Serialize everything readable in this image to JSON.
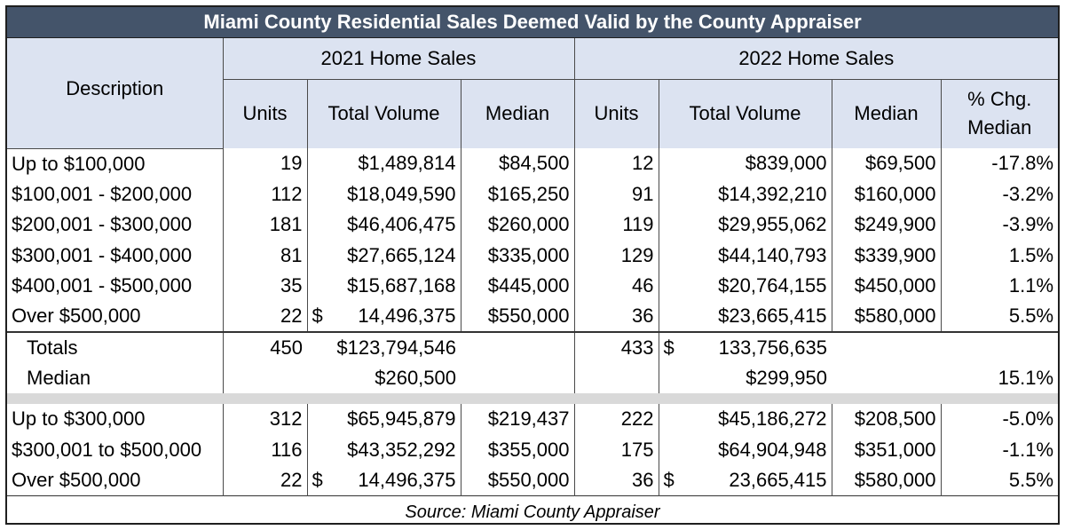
{
  "title": "Miami County Residential Sales Deemed Valid by the County Appraiser",
  "headers": {
    "description": "Description",
    "group_2021": "2021 Home Sales",
    "group_2022": "2022 Home Sales",
    "units": "Units",
    "total_volume": "Total Volume",
    "median": "Median",
    "pct_chg_line1": "% Chg.",
    "pct_chg_line2": "Median"
  },
  "rows_section1": [
    {
      "desc": "Up to $100,000",
      "u21": "19",
      "tv21": "$1,489,814",
      "m21": "$84,500",
      "u22": "12",
      "tv22": "$839,000",
      "m22": "$69,500",
      "pct": "-17.8%"
    },
    {
      "desc": "$100,001 - $200,000",
      "u21": "112",
      "tv21": "$18,049,590",
      "m21": "$165,250",
      "u22": "91",
      "tv22": "$14,392,210",
      "m22": "$160,000",
      "pct": "-3.2%"
    },
    {
      "desc": "$200,001 - $300,000",
      "u21": "181",
      "tv21": "$46,406,475",
      "m21": "$260,000",
      "u22": "119",
      "tv22": "$29,955,062",
      "m22": "$249,900",
      "pct": "-3.9%"
    },
    {
      "desc": "$300,001 - $400,000",
      "u21": "81",
      "tv21": "$27,665,124",
      "m21": "$335,000",
      "u22": "129",
      "tv22": "$44,140,793",
      "m22": "$339,900",
      "pct": "1.5%"
    },
    {
      "desc": "$400,001 - $500,000",
      "u21": "35",
      "tv21": "$15,687,168",
      "m21": "$445,000",
      "u22": "46",
      "tv22": "$20,764,155",
      "m22": "$450,000",
      "pct": "1.1%"
    },
    {
      "desc": "Over $500,000",
      "u21": "22",
      "tv21_sym": "$",
      "tv21_num": "14,496,375",
      "m21": "$550,000",
      "u22": "36",
      "tv22": "$23,665,415",
      "m22": "$580,000",
      "pct": "5.5%"
    }
  ],
  "totals": {
    "label": "Totals",
    "u21": "450",
    "tv21": "$123,794,546",
    "u22": "433",
    "tv22_sym": "$",
    "tv22_num": "133,756,635"
  },
  "median_row": {
    "label": "Median",
    "tv21": "$260,500",
    "tv22": "$299,950",
    "pct": "15.1%"
  },
  "rows_section2": [
    {
      "desc": "Up to $300,000",
      "u21": "312",
      "tv21": "$65,945,879",
      "m21": "$219,437",
      "u22": "222",
      "tv22": "$45,186,272",
      "m22": "$208,500",
      "pct": "-5.0%"
    },
    {
      "desc": "$300,001 to $500,000",
      "u21": "116",
      "tv21": "$43,352,292",
      "m21": "$355,000",
      "u22": "175",
      "tv22": "$64,904,948",
      "m22": "$351,000",
      "pct": "-1.1%"
    },
    {
      "desc": "Over $500,000",
      "u21": "22",
      "tv21_sym": "$",
      "tv21_num": "14,496,375",
      "m21": "$550,000",
      "u22": "36",
      "tv22_sym": "$",
      "tv22_num": "23,665,415",
      "m22": "$580,000",
      "pct": "5.5%"
    }
  ],
  "source": "Source: Miami County Appraiser",
  "colors": {
    "title_bg": "#44546a",
    "header_bg": "#dce3f1",
    "separator_gray": "#d9d9d9"
  }
}
